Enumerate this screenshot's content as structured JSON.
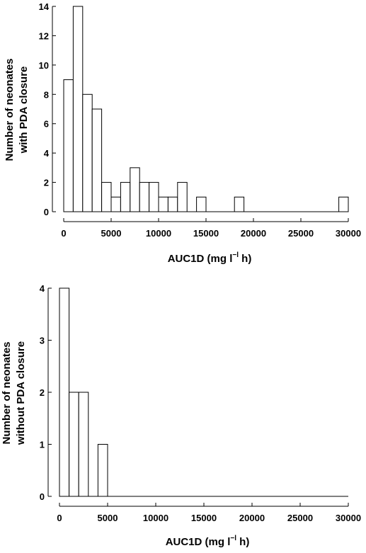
{
  "chart_data": [
    {
      "type": "bar",
      "title": "",
      "xlabel": "AUC1D (mg l−l h)",
      "xlabel_main": "AUC1D (mg l",
      "xlabel_sup": "−l",
      "xlabel_end": " h)",
      "ylabel": [
        "Number of neonates",
        "with PDA closure"
      ],
      "xlim": [
        0,
        30000
      ],
      "ylim": [
        0,
        14
      ],
      "xticks": [
        0,
        5000,
        10000,
        15000,
        20000,
        25000,
        30000
      ],
      "xtick_labels": [
        "0",
        "5000",
        "10000",
        "15000",
        "20000",
        "25000",
        "30000"
      ],
      "yticks": [
        0,
        2,
        4,
        6,
        8,
        10,
        12,
        14
      ],
      "ytick_labels": [
        "0",
        "2",
        "4",
        "6",
        "8",
        "10",
        "12",
        "14"
      ],
      "bin_width": 1000,
      "bins": [
        {
          "x_start": 0,
          "x_end": 1000,
          "value": 9
        },
        {
          "x_start": 1000,
          "x_end": 2000,
          "value": 14
        },
        {
          "x_start": 2000,
          "x_end": 3000,
          "value": 8
        },
        {
          "x_start": 3000,
          "x_end": 4000,
          "value": 7
        },
        {
          "x_start": 4000,
          "x_end": 5000,
          "value": 2
        },
        {
          "x_start": 5000,
          "x_end": 6000,
          "value": 1
        },
        {
          "x_start": 6000,
          "x_end": 7000,
          "value": 2
        },
        {
          "x_start": 7000,
          "x_end": 8000,
          "value": 3
        },
        {
          "x_start": 8000,
          "x_end": 9000,
          "value": 2
        },
        {
          "x_start": 9000,
          "x_end": 10000,
          "value": 2
        },
        {
          "x_start": 10000,
          "x_end": 11000,
          "value": 1
        },
        {
          "x_start": 11000,
          "x_end": 12000,
          "value": 1
        },
        {
          "x_start": 12000,
          "x_end": 13000,
          "value": 2
        },
        {
          "x_start": 13000,
          "x_end": 14000,
          "value": 0
        },
        {
          "x_start": 14000,
          "x_end": 15000,
          "value": 1
        },
        {
          "x_start": 18000,
          "x_end": 19000,
          "value": 1
        },
        {
          "x_start": 29000,
          "x_end": 30000,
          "value": 1
        }
      ]
    },
    {
      "type": "bar",
      "title": "",
      "xlabel": "AUC1D (mg l−l h)",
      "xlabel_main": "AUC1D (mg l",
      "xlabel_sup": "−l",
      "xlabel_end": " h)",
      "ylabel": [
        "Number of neonates",
        "without PDA closure"
      ],
      "xlim": [
        0,
        30000
      ],
      "ylim": [
        0,
        4
      ],
      "xticks": [
        0,
        5000,
        10000,
        15000,
        20000,
        25000,
        30000
      ],
      "xtick_labels": [
        "0",
        "5000",
        "10000",
        "15000",
        "20000",
        "25000",
        "30000"
      ],
      "yticks": [
        0,
        1,
        2,
        3,
        4
      ],
      "ytick_labels": [
        "0",
        "1",
        "2",
        "3",
        "4"
      ],
      "bin_width": 1000,
      "bins": [
        {
          "x_start": 0,
          "x_end": 1000,
          "value": 4
        },
        {
          "x_start": 1000,
          "x_end": 2000,
          "value": 2
        },
        {
          "x_start": 2000,
          "x_end": 3000,
          "value": 2
        },
        {
          "x_start": 3000,
          "x_end": 4000,
          "value": 0
        },
        {
          "x_start": 4000,
          "x_end": 5000,
          "value": 1
        }
      ]
    }
  ]
}
